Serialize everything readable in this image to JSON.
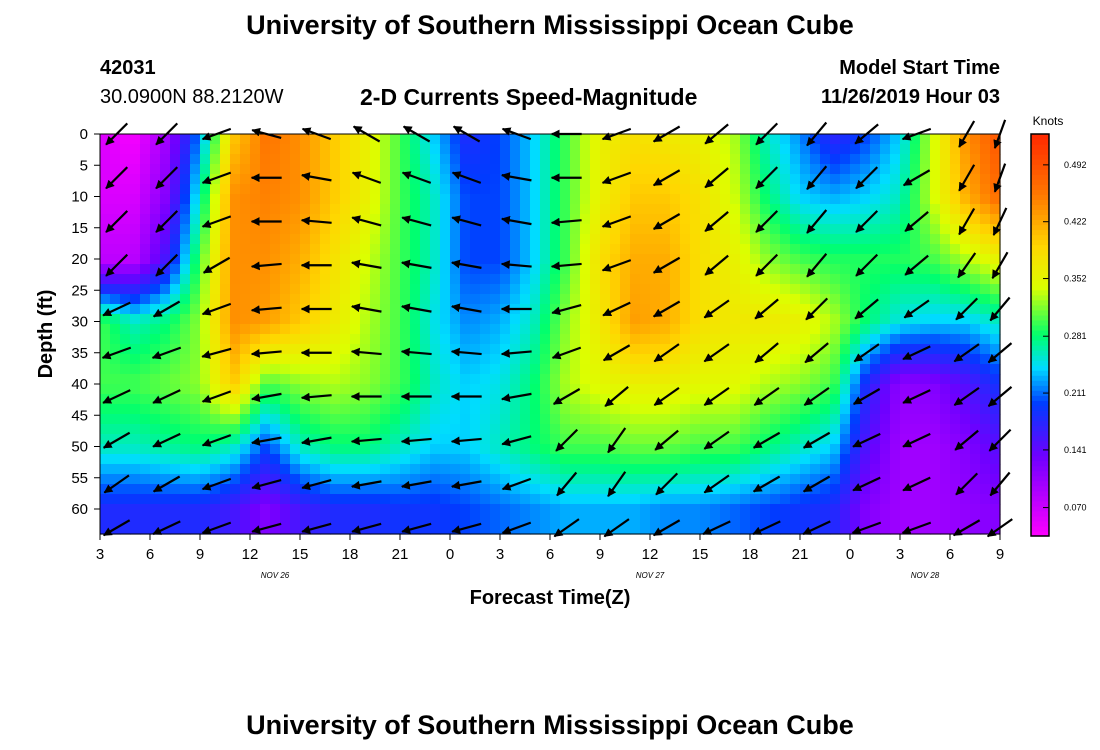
{
  "header": {
    "title": "University of Southern Mississippi Ocean Cube",
    "station_id": "42031",
    "coordinates": "30.0900N 88.2120W",
    "subtitle": "2-D Currents Speed-Magnitude",
    "model_start_label": "Model Start Time",
    "model_start_value": "11/26/2019 Hour 03"
  },
  "footer": {
    "title": "University of Southern Mississippi Ocean Cube"
  },
  "chart_data": {
    "type": "heatmap",
    "xlabel": "Forecast Time(Z)",
    "ylabel": "Depth (ft)",
    "x_range_hours": [
      0,
      54
    ],
    "x_tick_hours": [
      0,
      3,
      6,
      9,
      12,
      15,
      18,
      21,
      24,
      27,
      30,
      33,
      36,
      39,
      42,
      45,
      48,
      51,
      54
    ],
    "x_tick_labels": [
      "3",
      "6",
      "9",
      "12",
      "15",
      "18",
      "21",
      "0",
      "3",
      "6",
      "9",
      "12",
      "15",
      "18",
      "21",
      "0",
      "3",
      "6",
      "9"
    ],
    "date_labels": [
      {
        "text": "NOV 26",
        "hour": 10.5
      },
      {
        "text": "NOV 27",
        "hour": 33
      },
      {
        "text": "NOV 28",
        "hour": 49.5
      }
    ],
    "y_range": [
      0,
      64
    ],
    "y_ticks": [
      0,
      5,
      10,
      15,
      20,
      25,
      30,
      35,
      40,
      45,
      50,
      55,
      60
    ],
    "y_reversed": true,
    "colorbar": {
      "units": "Knots",
      "min": 0.035,
      "max": 0.53,
      "ticks": [
        0.07,
        0.141,
        0.211,
        0.281,
        0.352,
        0.422,
        0.492
      ],
      "tick_labels": [
        "0.070",
        "0.141",
        "0.211",
        "0.281",
        "0.352",
        "0.422",
        "0.492"
      ]
    },
    "speed_hours": [
      0,
      2,
      4,
      6,
      8,
      10,
      12,
      14,
      16,
      18,
      20,
      22,
      24,
      26,
      28,
      30,
      32,
      34,
      36,
      38,
      40,
      42,
      44,
      46,
      48,
      50,
      52,
      54
    ],
    "speed_depths": [
      0,
      10,
      20,
      30,
      40,
      50,
      60
    ],
    "speed_knots": [
      [
        0.06,
        0.04,
        0.1,
        0.22,
        0.4,
        0.46,
        0.44,
        0.4,
        0.36,
        0.3,
        0.24,
        0.18,
        0.2,
        0.24,
        0.3,
        0.36,
        0.38,
        0.37,
        0.36,
        0.33,
        0.26,
        0.22,
        0.17,
        0.2,
        0.24,
        0.34,
        0.44,
        0.49
      ],
      [
        0.06,
        0.06,
        0.12,
        0.26,
        0.44,
        0.45,
        0.44,
        0.4,
        0.36,
        0.3,
        0.26,
        0.2,
        0.2,
        0.24,
        0.3,
        0.36,
        0.4,
        0.4,
        0.38,
        0.34,
        0.28,
        0.24,
        0.23,
        0.24,
        0.26,
        0.34,
        0.42,
        0.47
      ],
      [
        0.08,
        0.08,
        0.16,
        0.3,
        0.44,
        0.44,
        0.42,
        0.38,
        0.34,
        0.3,
        0.26,
        0.2,
        0.2,
        0.24,
        0.3,
        0.38,
        0.42,
        0.42,
        0.38,
        0.36,
        0.32,
        0.3,
        0.29,
        0.29,
        0.29,
        0.3,
        0.33,
        0.36
      ],
      [
        0.3,
        0.26,
        0.28,
        0.32,
        0.44,
        0.43,
        0.4,
        0.37,
        0.33,
        0.3,
        0.25,
        0.22,
        0.23,
        0.26,
        0.32,
        0.37,
        0.43,
        0.42,
        0.38,
        0.37,
        0.37,
        0.36,
        0.33,
        0.28,
        0.25,
        0.24,
        0.24,
        0.26
      ],
      [
        0.3,
        0.3,
        0.31,
        0.32,
        0.4,
        0.3,
        0.32,
        0.33,
        0.32,
        0.3,
        0.26,
        0.24,
        0.25,
        0.28,
        0.33,
        0.35,
        0.36,
        0.36,
        0.35,
        0.35,
        0.33,
        0.32,
        0.3,
        0.18,
        0.11,
        0.12,
        0.15,
        0.19
      ],
      [
        0.26,
        0.26,
        0.27,
        0.28,
        0.26,
        0.2,
        0.26,
        0.28,
        0.28,
        0.26,
        0.24,
        0.24,
        0.26,
        0.28,
        0.3,
        0.3,
        0.31,
        0.31,
        0.3,
        0.3,
        0.28,
        0.26,
        0.24,
        0.15,
        0.1,
        0.1,
        0.12,
        0.15
      ],
      [
        0.18,
        0.18,
        0.18,
        0.18,
        0.16,
        0.12,
        0.16,
        0.18,
        0.18,
        0.19,
        0.19,
        0.2,
        0.21,
        0.22,
        0.23,
        0.23,
        0.23,
        0.22,
        0.22,
        0.21,
        0.2,
        0.19,
        0.18,
        0.12,
        0.1,
        0.1,
        0.11,
        0.12
      ]
    ],
    "vector_hours": [
      1,
      4,
      7,
      10,
      13,
      16,
      19,
      22,
      25,
      28,
      31,
      34,
      37,
      40,
      43,
      46,
      49,
      52,
      54
    ],
    "vector_depths": [
      0,
      7,
      14,
      21,
      28,
      35,
      42,
      49,
      56,
      63
    ],
    "vector_direction_deg": [
      [
        225,
        225,
        200,
        165,
        160,
        150,
        150,
        150,
        160,
        180,
        200,
        210,
        220,
        225,
        230,
        220,
        200,
        240,
        250
      ],
      [
        225,
        225,
        200,
        180,
        170,
        160,
        160,
        160,
        170,
        180,
        200,
        210,
        220,
        225,
        230,
        225,
        210,
        240,
        250
      ],
      [
        225,
        225,
        200,
        180,
        175,
        165,
        165,
        165,
        170,
        185,
        200,
        210,
        220,
        225,
        230,
        225,
        220,
        240,
        245
      ],
      [
        225,
        225,
        210,
        185,
        180,
        170,
        170,
        170,
        175,
        185,
        200,
        210,
        220,
        225,
        230,
        225,
        220,
        235,
        240
      ],
      [
        205,
        210,
        200,
        185,
        180,
        170,
        170,
        170,
        180,
        195,
        205,
        210,
        215,
        220,
        225,
        220,
        215,
        225,
        230
      ],
      [
        200,
        200,
        195,
        185,
        180,
        175,
        175,
        175,
        185,
        200,
        210,
        215,
        215,
        220,
        220,
        215,
        205,
        215,
        220
      ],
      [
        205,
        205,
        200,
        190,
        185,
        180,
        180,
        180,
        190,
        210,
        220,
        215,
        215,
        215,
        215,
        210,
        205,
        215,
        220
      ],
      [
        210,
        205,
        200,
        190,
        190,
        185,
        185,
        185,
        195,
        225,
        235,
        220,
        215,
        210,
        210,
        205,
        205,
        220,
        225
      ],
      [
        215,
        210,
        200,
        195,
        195,
        190,
        190,
        190,
        200,
        230,
        235,
        225,
        215,
        210,
        210,
        205,
        205,
        225,
        230
      ],
      [
        210,
        205,
        200,
        195,
        195,
        195,
        195,
        195,
        200,
        215,
        215,
        210,
        205,
        205,
        205,
        200,
        200,
        210,
        215
      ]
    ],
    "grid": false,
    "legend": "right"
  }
}
